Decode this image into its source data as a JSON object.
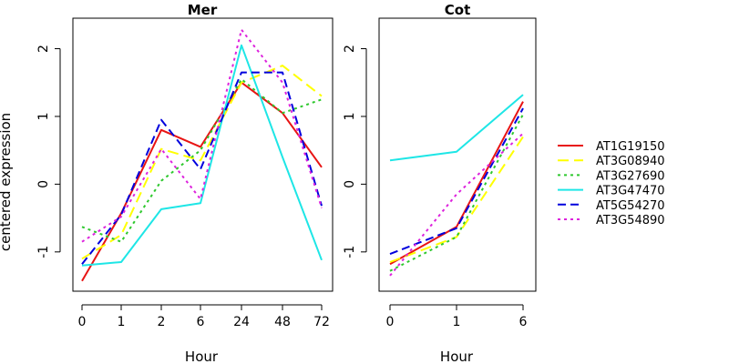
{
  "colors": {
    "AT1G19150": "#e81414",
    "AT3G08940": "#ffff00",
    "AT3G27690": "#2ec82e",
    "AT3G47470": "#1ee6e6",
    "AT5G54270": "#0000dd",
    "AT3G54890": "#dd22dd"
  },
  "shared_ylabel": "centered expression",
  "chart_data": [
    {
      "type": "line",
      "title": "Mer",
      "xlabel": "Hour",
      "ylabel": "centered expression",
      "categories": [
        "0",
        "1",
        "2",
        "6",
        "24",
        "48",
        "72"
      ],
      "yticks": [
        -1,
        0,
        1,
        2
      ],
      "ylim": [
        -1.58,
        2.45
      ],
      "grid": false,
      "legend_position": "right",
      "series": [
        {
          "name": "AT1G19150",
          "line_style": "solid",
          "values": [
            -1.43,
            -0.43,
            0.8,
            0.55,
            1.5,
            1.05,
            0.25
          ]
        },
        {
          "name": "AT3G08940",
          "line_style": "long-dash",
          "values": [
            -1.1,
            -0.75,
            0.52,
            0.35,
            1.5,
            1.75,
            1.3
          ]
        },
        {
          "name": "AT3G27690",
          "line_style": "dotted",
          "values": [
            -0.63,
            -0.85,
            0.05,
            0.5,
            1.55,
            1.05,
            1.25
          ]
        },
        {
          "name": "AT3G47470",
          "line_style": "solid",
          "values": [
            -1.2,
            -1.15,
            -0.37,
            -0.28,
            2.05,
            0.4,
            -1.12
          ]
        },
        {
          "name": "AT5G54270",
          "line_style": "dashed",
          "values": [
            -1.18,
            -0.45,
            0.95,
            0.22,
            1.65,
            1.65,
            -0.32
          ]
        },
        {
          "name": "AT3G54890",
          "line_style": "dotted",
          "values": [
            -0.85,
            -0.48,
            0.52,
            -0.22,
            2.28,
            1.5,
            -0.35
          ]
        }
      ]
    },
    {
      "type": "line",
      "title": "Cot",
      "xlabel": "Hour",
      "categories": [
        "0",
        "1",
        "6"
      ],
      "yticks": [
        -1,
        0,
        1,
        2
      ],
      "ylim": [
        -1.58,
        2.45
      ],
      "grid": false,
      "legend_position": "right",
      "series": [
        {
          "name": "AT1G19150",
          "line_style": "solid",
          "values": [
            -1.18,
            -0.63,
            1.22
          ]
        },
        {
          "name": "AT3G08940",
          "line_style": "long-dash",
          "values": [
            -1.15,
            -0.78,
            0.7
          ]
        },
        {
          "name": "AT3G27690",
          "line_style": "dotted",
          "values": [
            -1.28,
            -0.78,
            1.03
          ]
        },
        {
          "name": "AT3G47470",
          "line_style": "solid",
          "values": [
            0.35,
            0.48,
            1.32
          ]
        },
        {
          "name": "AT5G54270",
          "line_style": "dashed",
          "values": [
            -1.03,
            -0.65,
            1.12
          ]
        },
        {
          "name": "AT3G54890",
          "line_style": "dotted",
          "values": [
            -1.35,
            -0.15,
            0.75
          ]
        }
      ]
    }
  ]
}
